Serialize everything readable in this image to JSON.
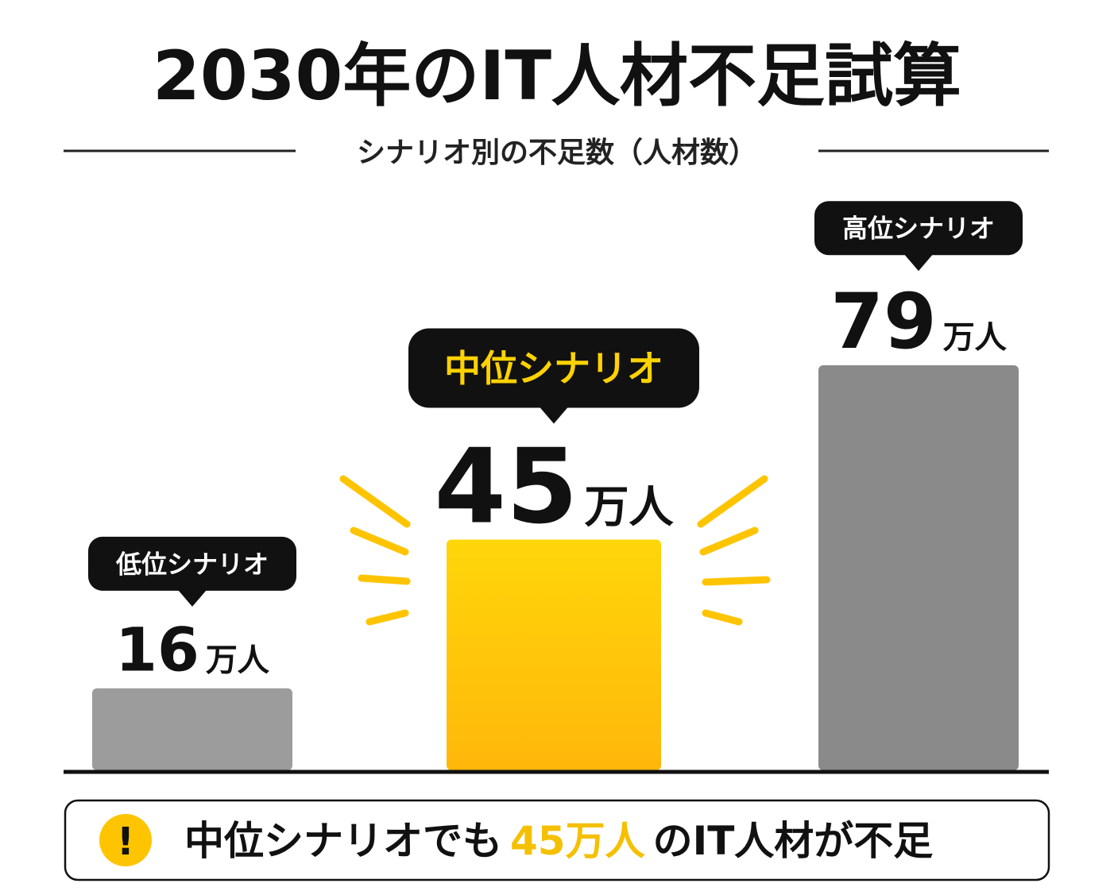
{
  "chart_data": {
    "type": "bar",
    "title": "2030年のIT人材不足試算",
    "subtitle": "シナリオ別の不足数（人材数）",
    "categories": [
      "低位シナリオ",
      "中位シナリオ",
      "高位シナリオ"
    ],
    "values": [
      16,
      45,
      79
    ],
    "unit": "万人",
    "colors": [
      "#9c9c9c",
      "#ffc400",
      "#8a8a8a"
    ],
    "highlight": 1
  },
  "note": {
    "icon": "!",
    "before": "中位シナリオでも",
    "highlight": "45万人",
    "after": "のIT人材が不足"
  }
}
